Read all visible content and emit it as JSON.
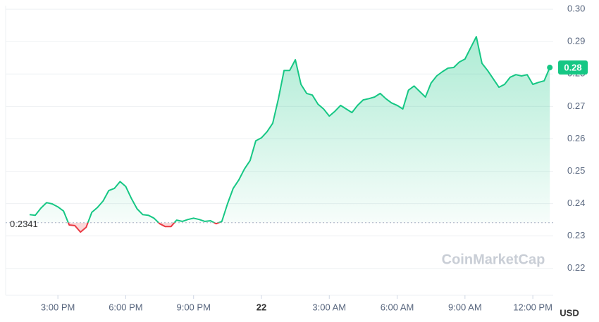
{
  "chart_data": {
    "type": "line",
    "x": [
      13.75,
      14,
      14.25,
      14.5,
      14.75,
      15,
      15.25,
      15.5,
      15.75,
      16,
      16.25,
      16.5,
      16.75,
      17,
      17.25,
      17.5,
      17.75,
      18,
      18.25,
      18.5,
      18.75,
      19,
      19.25,
      19.5,
      19.75,
      20,
      20.25,
      20.5,
      20.75,
      21,
      21.25,
      21.5,
      21.75,
      22,
      22.25,
      22.5,
      22.75,
      23,
      23.25,
      23.5,
      23.75,
      24,
      24.25,
      24.5,
      24.75,
      25,
      25.25,
      25.5,
      25.75,
      26,
      26.25,
      26.5,
      26.75,
      27,
      27.25,
      27.5,
      27.75,
      28,
      28.25,
      28.5,
      28.75,
      29,
      29.25,
      29.5,
      29.75,
      30,
      30.25,
      30.5,
      30.75,
      31,
      31.25,
      31.5,
      31.75,
      32,
      32.25,
      32.5,
      32.75,
      33,
      33.25,
      33.5,
      33.75,
      34,
      34.25,
      34.5,
      34.75,
      35,
      35.25,
      35.5,
      35.75,
      36,
      36.25,
      36.5,
      36.75
    ],
    "values": [
      0.2366,
      0.2364,
      0.2386,
      0.2403,
      0.2399,
      0.239,
      0.2377,
      0.2334,
      0.2332,
      0.2312,
      0.2327,
      0.2373,
      0.2388,
      0.2408,
      0.244,
      0.2447,
      0.2468,
      0.2453,
      0.2416,
      0.2384,
      0.2366,
      0.2364,
      0.2355,
      0.2338,
      0.2329,
      0.2329,
      0.2349,
      0.2345,
      0.2351,
      0.2355,
      0.2351,
      0.2345,
      0.2347,
      0.2338,
      0.2345,
      0.2399,
      0.2447,
      0.2473,
      0.2507,
      0.2533,
      0.2594,
      0.2603,
      0.2622,
      0.2648,
      0.2724,
      0.2811,
      0.2811,
      0.2844,
      0.2768,
      0.274,
      0.2735,
      0.2707,
      0.2692,
      0.267,
      0.2685,
      0.2703,
      0.2692,
      0.2681,
      0.2703,
      0.272,
      0.2724,
      0.2729,
      0.274,
      0.2724,
      0.2711,
      0.2703,
      0.2692,
      0.275,
      0.2763,
      0.2746,
      0.2729,
      0.2772,
      0.2794,
      0.2807,
      0.2818,
      0.282,
      0.2837,
      0.2846,
      0.2881,
      0.2915,
      0.2833,
      0.2811,
      0.2785,
      0.2759,
      0.2768,
      0.279,
      0.2798,
      0.2794,
      0.2798,
      0.2768,
      0.2774,
      0.2779,
      0.282
    ],
    "value_labels": [
      null,
      null,
      null,
      null,
      null,
      null,
      null,
      null,
      null,
      null,
      null,
      null,
      null,
      null,
      null,
      null,
      null,
      null,
      null,
      null,
      null,
      null,
      null,
      null,
      null,
      null,
      null,
      null,
      null,
      null,
      null,
      null,
      null,
      null,
      null,
      null,
      null,
      null,
      null,
      null,
      null,
      null,
      null,
      null,
      null,
      null,
      null,
      null,
      null,
      null,
      null,
      null,
      null,
      null,
      null,
      null,
      null,
      null,
      null,
      null,
      null,
      null,
      null,
      null,
      null,
      null,
      null,
      null,
      null,
      null,
      null,
      null,
      null,
      null,
      null,
      null,
      null,
      null,
      null,
      null,
      null,
      null,
      null,
      null,
      null,
      null,
      null,
      null,
      null,
      null,
      null,
      null,
      "0.28"
    ],
    "up_color": "#16c784",
    "down_color": "#ea3943",
    "reference_line": 0.2341,
    "xlim": [
      12.69,
      36.9
    ],
    "xticks": [
      {
        "value": 15,
        "label": "3:00 PM"
      },
      {
        "value": 18,
        "label": "6:00 PM"
      },
      {
        "value": 21,
        "label": "9:00 PM"
      },
      {
        "value": 24,
        "label": "22"
      },
      {
        "value": 27,
        "label": "3:00 AM"
      },
      {
        "value": 30,
        "label": "6:00 AM"
      },
      {
        "value": 33,
        "label": "9:00 AM"
      },
      {
        "value": 36,
        "label": "12:00 PM"
      }
    ],
    "ylim": [
      0.2117,
      0.3011
    ],
    "yticks": [
      0.22,
      0.23,
      0.24,
      0.25,
      0.26,
      0.27,
      0.28,
      0.29,
      {
        "value": 0.3,
        "label": "0.30"
      }
    ],
    "grid": true,
    "currency": "USD",
    "watermark": "CoinMarketCap"
  }
}
